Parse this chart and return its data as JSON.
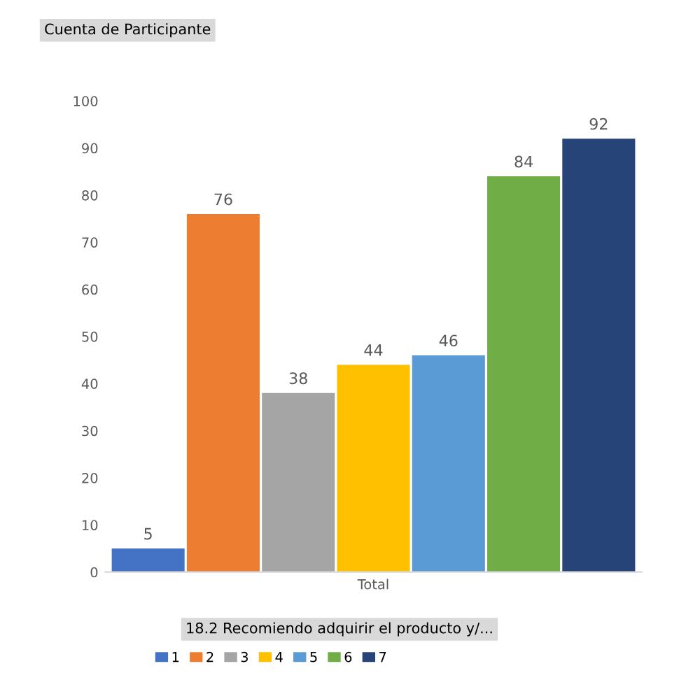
{
  "chart_data": {
    "type": "bar",
    "title": "Cuenta de Participante",
    "legend_title": "18.2 Recomiendo adquirir el producto y/...",
    "categories": [
      "Total"
    ],
    "series": [
      {
        "name": "1",
        "color": "#4472c4",
        "values": [
          5
        ]
      },
      {
        "name": "2",
        "color": "#ed7d31",
        "values": [
          76
        ]
      },
      {
        "name": "3",
        "color": "#a5a5a5",
        "values": [
          38
        ]
      },
      {
        "name": "4",
        "color": "#ffc000",
        "values": [
          44
        ]
      },
      {
        "name": "5",
        "color": "#5b9bd5",
        "values": [
          46
        ]
      },
      {
        "name": "6",
        "color": "#70ad47",
        "values": [
          84
        ]
      },
      {
        "name": "7",
        "color": "#264478",
        "values": [
          92
        ]
      }
    ],
    "ylim": [
      0,
      100
    ],
    "yticks": [
      0,
      10,
      20,
      30,
      40,
      50,
      60,
      70,
      80,
      90,
      100
    ],
    "data_labels": true,
    "grid": false,
    "legend": "bottom"
  }
}
